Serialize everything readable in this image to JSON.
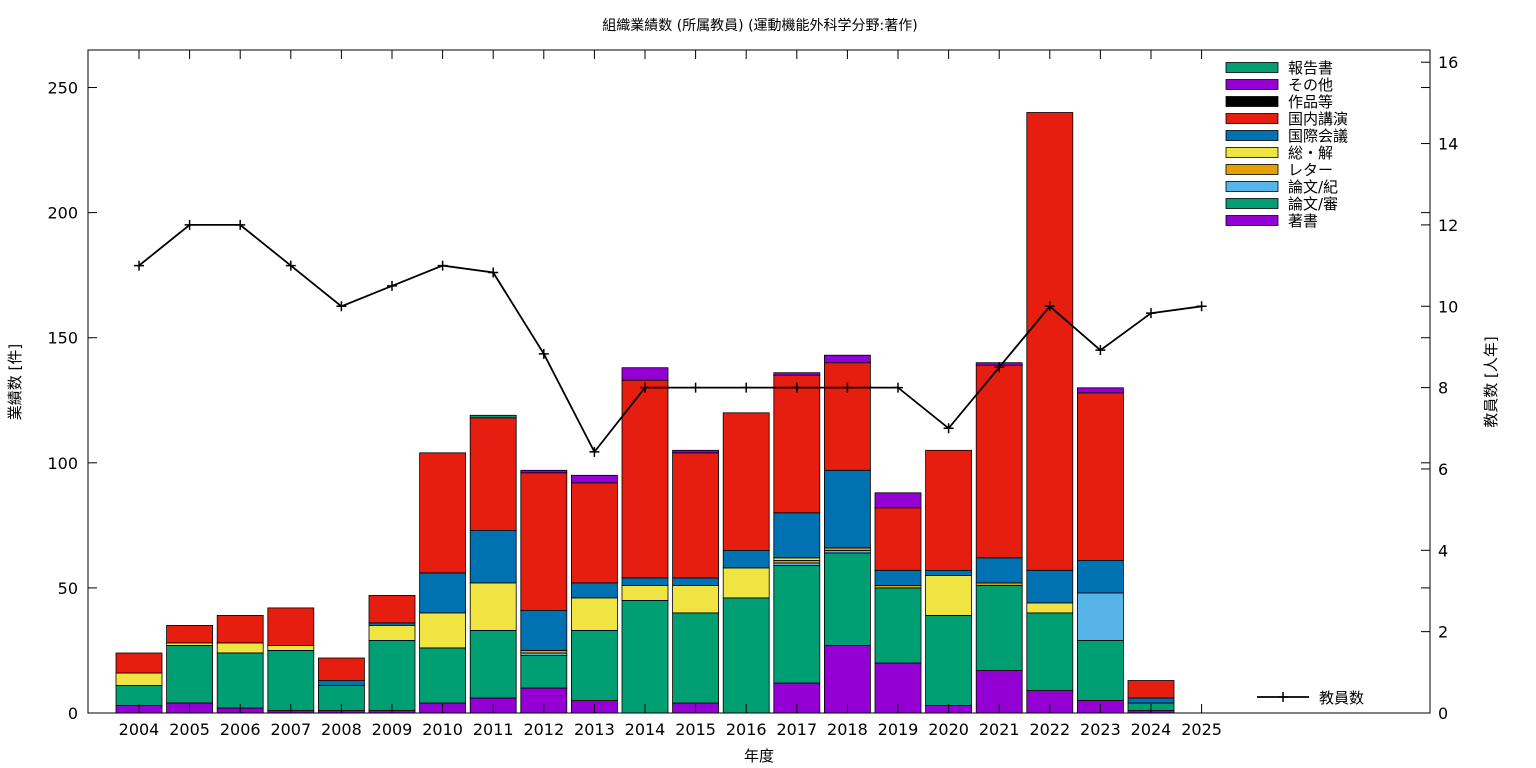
{
  "chart_data": {
    "type": "bar",
    "title": "組織業績数 (所属教員) (運動機能外科学分野:著作)",
    "xlabel": "年度",
    "ylabel": "業績数 [件]",
    "y2label": "教員数 [人年]",
    "ylim": [
      0,
      265
    ],
    "y2lim": [
      0,
      16.3
    ],
    "yticks": [
      0,
      50,
      100,
      150,
      200,
      250
    ],
    "y2ticks": [
      0,
      2,
      4,
      6,
      8,
      10,
      12,
      14,
      16
    ],
    "grid": false,
    "legend_position": "top-right",
    "categories": [
      "2004",
      "2005",
      "2006",
      "2007",
      "2008",
      "2009",
      "2010",
      "2011",
      "2012",
      "2013",
      "2014",
      "2015",
      "2016",
      "2017",
      "2018",
      "2019",
      "2020",
      "2021",
      "2022",
      "2023",
      "2024",
      "2025"
    ],
    "series": [
      {
        "name": "著書",
        "color": "#9400d3",
        "values": [
          3,
          4,
          2,
          1,
          1,
          1,
          4,
          6,
          10,
          5,
          0,
          4,
          0,
          12,
          27,
          20,
          3,
          17,
          9,
          5,
          1,
          0
        ]
      },
      {
        "name": "論文/審",
        "color": "#009e73",
        "values": [
          8,
          23,
          22,
          24,
          10,
          28,
          22,
          27,
          13,
          28,
          45,
          36,
          46,
          47,
          37,
          30,
          36,
          34,
          31,
          24,
          3,
          0
        ]
      },
      {
        "name": "論文/紀",
        "color": "#56b4e9",
        "values": [
          0,
          0,
          0,
          0,
          0,
          0,
          0,
          0,
          1,
          0,
          0,
          0,
          0,
          1,
          1,
          0,
          0,
          0,
          0,
          19,
          0,
          0
        ]
      },
      {
        "name": "レター",
        "color": "#e69f00",
        "values": [
          0,
          0,
          0,
          0,
          0,
          0,
          0,
          0,
          1,
          0,
          0,
          0,
          0,
          1,
          1,
          1,
          0,
          1,
          0,
          0,
          0,
          0
        ]
      },
      {
        "name": "総・解",
        "color": "#f0e442",
        "values": [
          5,
          1,
          4,
          2,
          0,
          6,
          14,
          19,
          0,
          13,
          6,
          11,
          12,
          1,
          0,
          0,
          16,
          0,
          4,
          0,
          0,
          0
        ]
      },
      {
        "name": "国際会議",
        "color": "#0072b2",
        "values": [
          0,
          0,
          0,
          0,
          2,
          1,
          16,
          21,
          16,
          6,
          3,
          3,
          7,
          18,
          31,
          6,
          2,
          10,
          13,
          13,
          2,
          0
        ]
      },
      {
        "name": "国内講演",
        "color": "#e51e10",
        "values": [
          8,
          7,
          11,
          15,
          9,
          11,
          48,
          45,
          55,
          40,
          79,
          50,
          55,
          55,
          43,
          25,
          48,
          77,
          183,
          67,
          7,
          0
        ]
      },
      {
        "name": "作品等",
        "color": "#000000",
        "values": [
          0,
          0,
          0,
          0,
          0,
          0,
          0,
          0,
          0,
          0,
          0,
          0,
          0,
          0,
          0,
          0,
          0,
          0,
          0,
          0,
          0,
          0
        ]
      },
      {
        "name": "その他",
        "color": "#9400d3",
        "values": [
          0,
          0,
          0,
          0,
          0,
          0,
          0,
          0,
          1,
          3,
          5,
          1,
          0,
          1,
          3,
          6,
          0,
          1,
          0,
          2,
          0,
          0
        ]
      },
      {
        "name": "報告書",
        "color": "#009e73",
        "values": [
          0,
          0,
          0,
          0,
          0,
          0,
          0,
          1,
          0,
          0,
          0,
          0,
          0,
          0,
          0,
          0,
          0,
          0,
          0,
          0,
          0,
          0
        ]
      }
    ],
    "line": {
      "name": "教員数",
      "axis": "right",
      "color": "#000000",
      "values": [
        11,
        12,
        12,
        11,
        10,
        10.5,
        11,
        10.83,
        8.83,
        6.42,
        8,
        8,
        8,
        8,
        8,
        8,
        7,
        8.5,
        10,
        8.92,
        9.83,
        10
      ]
    }
  }
}
